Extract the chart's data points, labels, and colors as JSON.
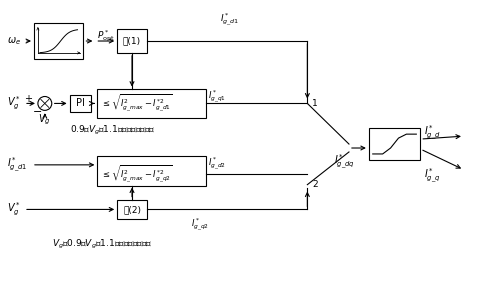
{
  "bg_color": "#ffffff",
  "line_color": "#000000",
  "figsize": [
    4.78,
    2.98
  ],
  "dpi": 100,
  "texts": {
    "omega_e": "$\\omega_e$",
    "P_opt": "$P^*_{\\rm opt}$",
    "shi1": "式(1)",
    "Igd1_top": "$I^*_{g\\_d1}$",
    "Vg_star1": "$V^*_g$",
    "plus": "+",
    "minus": "−",
    "Vg1": "$V_g$",
    "PI": "PI",
    "constraint1": "$\\leq\\sqrt{I^2_{g\\_max}-I^{*2}_{g\\_d1}}$",
    "Igq1": "$I^*_{g\\_q1}$",
    "label1": "0.9＜$V_g$＜1.1时，有功优先控制",
    "Igd1_bot": "$I^*_{g\\_d1}$",
    "constraint2": "$\\leq\\sqrt{I^2_{g\\_max}-I^{*2}_{g\\_q2}}$",
    "Igd2": "$I^*_{g\\_d2}$",
    "Vg_star2": "$V^*_g$",
    "shi2": "式(2)",
    "Igq2": "$I^*_{g\\_q2}$",
    "label2": "$V_g$＜0.9或$V_g$＞1.1时，无功优先控制",
    "Igdq": "$I^*_{g\\_dq}$",
    "Igd_out": "$I^*_{g\\_d}$",
    "Igq_out": "$I^*_{g\\_q}$",
    "node1": "1",
    "node2": "2"
  }
}
